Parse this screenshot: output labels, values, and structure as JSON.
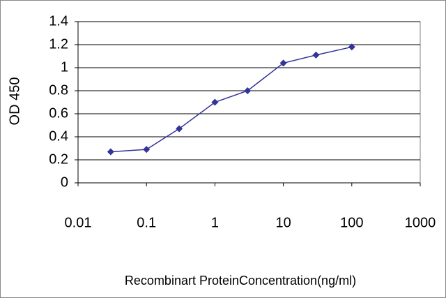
{
  "chart_data": {
    "type": "line",
    "x_label": "Recombinart ProteinConcentration(ng/ml)",
    "y_label": "OD 450",
    "x": [
      0.03,
      0.1,
      0.3,
      1,
      3,
      10,
      30,
      100
    ],
    "values": [
      0.27,
      0.29,
      0.47,
      0.7,
      0.8,
      1.04,
      1.11,
      1.18
    ],
    "color": "#333399",
    "xscale": "log",
    "xlim": [
      0.01,
      1000
    ],
    "xticks": [
      0.01,
      0.1,
      1,
      10,
      100,
      1000
    ],
    "ylim": [
      0,
      1.4
    ],
    "yticks": [
      0,
      0.2,
      0.4,
      0.6,
      0.8,
      1,
      1.2,
      1.4
    ],
    "grid": true
  }
}
